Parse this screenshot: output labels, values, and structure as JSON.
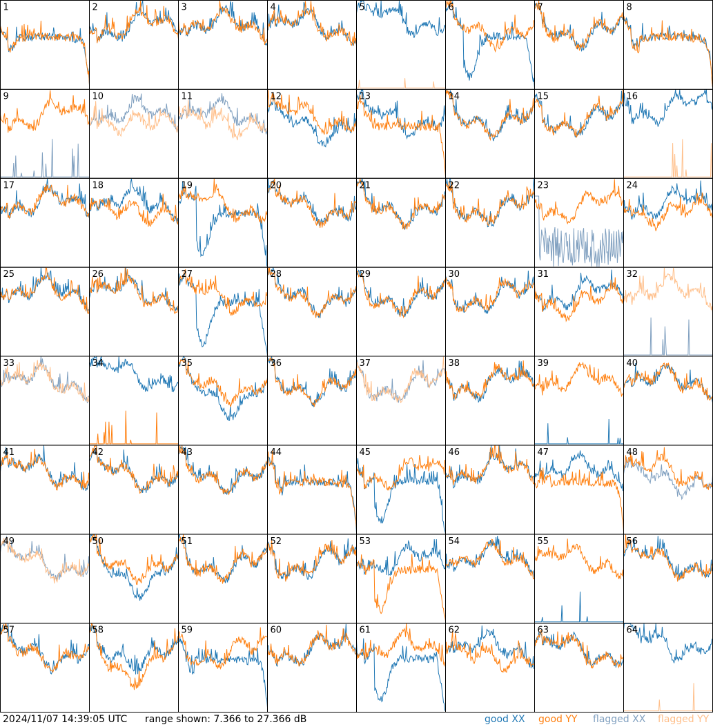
{
  "colors": {
    "good_xx": "#1f77b4",
    "good_yy": "#ff7f0e",
    "flagged_xx": "#7f9fbf",
    "flagged_yy": "#ffbf8a",
    "frame": "#000000"
  },
  "footer": {
    "timestamp": "2024/11/07 14:39:05 UTC",
    "range_text": "range shown: 7.366 to 27.366 dB",
    "legend": {
      "good_xx_word": "good",
      "good_xx_pol": "XX",
      "good_yy_word": "good",
      "good_yy_pol": "YY",
      "flagged_xx_word": "flagged",
      "flagged_xx_pol": "XX",
      "flagged_yy_word": "flagged",
      "flagged_yy_pol": "YY"
    }
  },
  "chart_data": {
    "type": "line",
    "layout": {
      "rows": 8,
      "cols": 8
    },
    "y_unit": "dB",
    "ylim": [
      7.366,
      27.366
    ],
    "series_kinds": [
      "good XX",
      "good YY",
      "flagged XX",
      "flagged YY"
    ],
    "panels": [
      {
        "id": "1",
        "xx": {
          "status": "good",
          "shape": "rolloff"
        },
        "yy": {
          "status": "good",
          "shape": "rolloff"
        }
      },
      {
        "id": "2",
        "xx": {
          "status": "good",
          "shape": "normal"
        },
        "yy": {
          "status": "good",
          "shape": "normal"
        }
      },
      {
        "id": "3",
        "xx": {
          "status": "good",
          "shape": "normal"
        },
        "yy": {
          "status": "good",
          "shape": "normal"
        }
      },
      {
        "id": "4",
        "xx": {
          "status": "good",
          "shape": "normal"
        },
        "yy": {
          "status": "good",
          "shape": "normal"
        }
      },
      {
        "id": "5",
        "xx": {
          "status": "good",
          "shape": "high"
        },
        "yy": {
          "status": "flagged",
          "shape": "dead"
        }
      },
      {
        "id": "6",
        "xx": {
          "status": "good",
          "shape": "dip"
        },
        "yy": {
          "status": "good",
          "shape": "normal"
        }
      },
      {
        "id": "7",
        "xx": {
          "status": "good",
          "shape": "normal"
        },
        "yy": {
          "status": "good",
          "shape": "normal"
        }
      },
      {
        "id": "8",
        "xx": {
          "status": "good",
          "shape": "rolloff"
        },
        "yy": {
          "status": "good",
          "shape": "rolloff"
        }
      },
      {
        "id": "9",
        "xx": {
          "status": "flagged",
          "shape": "dead"
        },
        "yy": {
          "status": "good",
          "shape": "normal"
        }
      },
      {
        "id": "10",
        "xx": {
          "status": "flagged",
          "shape": "normal"
        },
        "yy": {
          "status": "flagged",
          "shape": "low"
        }
      },
      {
        "id": "11",
        "xx": {
          "status": "flagged",
          "shape": "normal"
        },
        "yy": {
          "status": "flagged",
          "shape": "low"
        }
      },
      {
        "id": "12",
        "xx": {
          "status": "good",
          "shape": "low"
        },
        "yy": {
          "status": "good",
          "shape": "normal"
        }
      },
      {
        "id": "13",
        "xx": {
          "status": "good",
          "shape": "normal"
        },
        "yy": {
          "status": "good",
          "shape": "rolloff"
        }
      },
      {
        "id": "14",
        "xx": {
          "status": "good",
          "shape": "normal"
        },
        "yy": {
          "status": "good",
          "shape": "normal"
        }
      },
      {
        "id": "15",
        "xx": {
          "status": "good",
          "shape": "normal"
        },
        "yy": {
          "status": "good",
          "shape": "normal"
        }
      },
      {
        "id": "16",
        "xx": {
          "status": "good",
          "shape": "high"
        },
        "yy": {
          "status": "flagged",
          "shape": "dead"
        }
      },
      {
        "id": "17",
        "xx": {
          "status": "good",
          "shape": "normal"
        },
        "yy": {
          "status": "good",
          "shape": "normal"
        }
      },
      {
        "id": "18",
        "xx": {
          "status": "good",
          "shape": "normal"
        },
        "yy": {
          "status": "good",
          "shape": "low"
        }
      },
      {
        "id": "19",
        "xx": {
          "status": "good",
          "shape": "dip"
        },
        "yy": {
          "status": "good",
          "shape": "normal"
        }
      },
      {
        "id": "20",
        "xx": {
          "status": "good",
          "shape": "normal"
        },
        "yy": {
          "status": "good",
          "shape": "normal"
        }
      },
      {
        "id": "21",
        "xx": {
          "status": "good",
          "shape": "normal"
        },
        "yy": {
          "status": "good",
          "shape": "normal"
        }
      },
      {
        "id": "22",
        "xx": {
          "status": "good",
          "shape": "normal"
        },
        "yy": {
          "status": "good",
          "shape": "normal"
        }
      },
      {
        "id": "23",
        "xx": {
          "status": "flagged",
          "shape": "noisy"
        },
        "yy": {
          "status": "good",
          "shape": "normal"
        }
      },
      {
        "id": "24",
        "xx": {
          "status": "good",
          "shape": "normal"
        },
        "yy": {
          "status": "good",
          "shape": "low"
        }
      },
      {
        "id": "25",
        "xx": {
          "status": "good",
          "shape": "normal"
        },
        "yy": {
          "status": "good",
          "shape": "normal"
        }
      },
      {
        "id": "26",
        "xx": {
          "status": "good",
          "shape": "normal"
        },
        "yy": {
          "status": "good",
          "shape": "normal"
        }
      },
      {
        "id": "27",
        "xx": {
          "status": "good",
          "shape": "dip"
        },
        "yy": {
          "status": "good",
          "shape": "normal"
        }
      },
      {
        "id": "28",
        "xx": {
          "status": "good",
          "shape": "normal"
        },
        "yy": {
          "status": "good",
          "shape": "normal"
        }
      },
      {
        "id": "29",
        "xx": {
          "status": "good",
          "shape": "normal"
        },
        "yy": {
          "status": "good",
          "shape": "normal"
        }
      },
      {
        "id": "30",
        "xx": {
          "status": "good",
          "shape": "normal"
        },
        "yy": {
          "status": "good",
          "shape": "normal"
        }
      },
      {
        "id": "31",
        "xx": {
          "status": "good",
          "shape": "normal"
        },
        "yy": {
          "status": "good",
          "shape": "low"
        }
      },
      {
        "id": "32",
        "xx": {
          "status": "flagged",
          "shape": "dead"
        },
        "yy": {
          "status": "flagged",
          "shape": "normal"
        }
      },
      {
        "id": "33",
        "xx": {
          "status": "flagged",
          "shape": "normal"
        },
        "yy": {
          "status": "flagged",
          "shape": "normal"
        }
      },
      {
        "id": "34",
        "xx": {
          "status": "good",
          "shape": "high"
        },
        "yy": {
          "status": "good",
          "shape": "dead"
        }
      },
      {
        "id": "35",
        "xx": {
          "status": "good",
          "shape": "low"
        },
        "yy": {
          "status": "good",
          "shape": "normal"
        }
      },
      {
        "id": "36",
        "xx": {
          "status": "good",
          "shape": "normal"
        },
        "yy": {
          "status": "good",
          "shape": "normal"
        }
      },
      {
        "id": "37",
        "xx": {
          "status": "flagged",
          "shape": "normal"
        },
        "yy": {
          "status": "flagged",
          "shape": "normal"
        }
      },
      {
        "id": "38",
        "xx": {
          "status": "good",
          "shape": "normal"
        },
        "yy": {
          "status": "good",
          "shape": "normal"
        }
      },
      {
        "id": "39",
        "xx": {
          "status": "good",
          "shape": "dead"
        },
        "yy": {
          "status": "good",
          "shape": "normal"
        }
      },
      {
        "id": "40",
        "xx": {
          "status": "good",
          "shape": "normal"
        },
        "yy": {
          "status": "good",
          "shape": "normal"
        }
      },
      {
        "id": "41",
        "xx": {
          "status": "good",
          "shape": "normal"
        },
        "yy": {
          "status": "good",
          "shape": "normal"
        }
      },
      {
        "id": "42",
        "xx": {
          "status": "good",
          "shape": "normal"
        },
        "yy": {
          "status": "good",
          "shape": "normal"
        }
      },
      {
        "id": "43",
        "xx": {
          "status": "good",
          "shape": "normal"
        },
        "yy": {
          "status": "good",
          "shape": "normal"
        }
      },
      {
        "id": "44",
        "xx": {
          "status": "good",
          "shape": "rolloff"
        },
        "yy": {
          "status": "good",
          "shape": "rolloff"
        }
      },
      {
        "id": "45",
        "xx": {
          "status": "good",
          "shape": "dip"
        },
        "yy": {
          "status": "good",
          "shape": "normal"
        }
      },
      {
        "id": "46",
        "xx": {
          "status": "good",
          "shape": "normal"
        },
        "yy": {
          "status": "good",
          "shape": "normal"
        }
      },
      {
        "id": "47",
        "xx": {
          "status": "good",
          "shape": "normal"
        },
        "yy": {
          "status": "good",
          "shape": "rolloff"
        }
      },
      {
        "id": "48",
        "xx": {
          "status": "flagged",
          "shape": "low"
        },
        "yy": {
          "status": "good",
          "shape": "normal"
        }
      },
      {
        "id": "49",
        "xx": {
          "status": "flagged",
          "shape": "normal"
        },
        "yy": {
          "status": "flagged",
          "shape": "normal"
        }
      },
      {
        "id": "50",
        "xx": {
          "status": "good",
          "shape": "low"
        },
        "yy": {
          "status": "good",
          "shape": "normal"
        }
      },
      {
        "id": "51",
        "xx": {
          "status": "good",
          "shape": "normal"
        },
        "yy": {
          "status": "good",
          "shape": "normal"
        }
      },
      {
        "id": "52",
        "xx": {
          "status": "good",
          "shape": "normal"
        },
        "yy": {
          "status": "good",
          "shape": "normal"
        }
      },
      {
        "id": "53",
        "xx": {
          "status": "good",
          "shape": "normal"
        },
        "yy": {
          "status": "good",
          "shape": "dip"
        }
      },
      {
        "id": "54",
        "xx": {
          "status": "good",
          "shape": "normal"
        },
        "yy": {
          "status": "good",
          "shape": "normal"
        }
      },
      {
        "id": "55",
        "xx": {
          "status": "good",
          "shape": "dead"
        },
        "yy": {
          "status": "good",
          "shape": "normal"
        }
      },
      {
        "id": "56",
        "xx": {
          "status": "good",
          "shape": "normal"
        },
        "yy": {
          "status": "good",
          "shape": "normal"
        }
      },
      {
        "id": "57",
        "xx": {
          "status": "good",
          "shape": "normal"
        },
        "yy": {
          "status": "good",
          "shape": "normal"
        }
      },
      {
        "id": "58",
        "xx": {
          "status": "good",
          "shape": "normal"
        },
        "yy": {
          "status": "good",
          "shape": "low"
        }
      },
      {
        "id": "59",
        "xx": {
          "status": "good",
          "shape": "rolloff"
        },
        "yy": {
          "status": "good",
          "shape": "normal"
        }
      },
      {
        "id": "60",
        "xx": {
          "status": "good",
          "shape": "normal"
        },
        "yy": {
          "status": "good",
          "shape": "normal"
        }
      },
      {
        "id": "61",
        "xx": {
          "status": "good",
          "shape": "dip"
        },
        "yy": {
          "status": "good",
          "shape": "normal"
        }
      },
      {
        "id": "62",
        "xx": {
          "status": "good",
          "shape": "normal"
        },
        "yy": {
          "status": "good",
          "shape": "low"
        }
      },
      {
        "id": "63",
        "xx": {
          "status": "good",
          "shape": "normal"
        },
        "yy": {
          "status": "good",
          "shape": "normal"
        }
      },
      {
        "id": "64",
        "xx": {
          "status": "good",
          "shape": "high"
        },
        "yy": {
          "status": "flagged",
          "shape": "dead"
        }
      }
    ]
  }
}
